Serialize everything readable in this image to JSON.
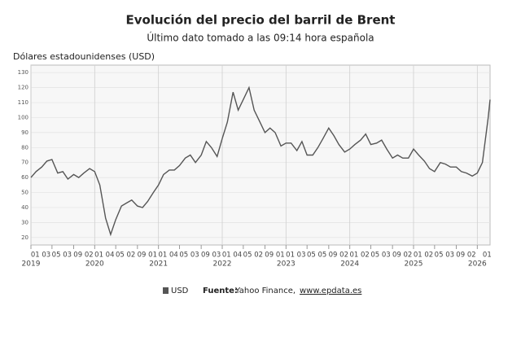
{
  "chart_data": {
    "type": "line",
    "title": "Evolución del precio del barril de Brent",
    "subtitle": "Último dato tomado a las 09:14 hora española",
    "y_label": "Dólares estadounidenses (USD)",
    "source_label": "Fuente:",
    "source_text": "Yahoo Finance,",
    "source_link": "www.epdata.es",
    "series": [
      {
        "name": "USD",
        "color": "#555555",
        "x": [
          2019.0,
          2019.08,
          2019.17,
          2019.25,
          2019.33,
          2019.42,
          2019.5,
          2019.58,
          2019.67,
          2019.75,
          2019.83,
          2019.92,
          2020.0,
          2020.08,
          2020.17,
          2020.25,
          2020.33,
          2020.42,
          2020.5,
          2020.58,
          2020.67,
          2020.75,
          2020.83,
          2020.92,
          2021.0,
          2021.08,
          2021.17,
          2021.25,
          2021.33,
          2021.42,
          2021.5,
          2021.58,
          2021.67,
          2021.75,
          2021.83,
          2021.92,
          2022.0,
          2022.08,
          2022.17,
          2022.25,
          2022.33,
          2022.42,
          2022.5,
          2022.58,
          2022.67,
          2022.75,
          2022.83,
          2022.92,
          2023.0,
          2023.08,
          2023.17,
          2023.25,
          2023.33,
          2023.42,
          2023.5,
          2023.58,
          2023.67,
          2023.75,
          2023.83,
          2023.92,
          2024.0,
          2024.08,
          2024.17,
          2024.25,
          2024.33,
          2024.42,
          2024.5,
          2024.58,
          2024.67,
          2024.75,
          2024.83,
          2024.92,
          2025.0,
          2025.08,
          2025.17,
          2025.25,
          2025.33,
          2025.42,
          2025.5,
          2025.58,
          2025.67,
          2025.75,
          2025.83,
          2025.92,
          2026.0,
          2026.08,
          2026.17,
          2026.2
        ],
        "values": [
          60,
          64,
          67,
          71,
          72,
          63,
          64,
          59,
          62,
          60,
          63,
          66,
          64,
          55,
          33,
          22,
          32,
          41,
          43,
          45,
          41,
          40,
          44,
          50,
          55,
          62,
          65,
          65,
          68,
          73,
          75,
          70,
          75,
          84,
          80,
          74,
          86,
          97,
          117,
          105,
          112,
          120,
          105,
          98,
          90,
          93,
          90,
          81,
          83,
          83,
          78,
          84,
          75,
          75,
          80,
          86,
          93,
          88,
          82,
          77,
          79,
          82,
          85,
          89,
          82,
          83,
          85,
          79,
          73,
          75,
          73,
          73,
          79,
          75,
          71,
          66,
          64,
          70,
          69,
          67,
          67,
          64,
          63,
          61,
          63,
          70,
          100,
          112
        ]
      }
    ],
    "xlim": [
      2019,
      2026.2
    ],
    "ylim": [
      15,
      135
    ],
    "yticks": [
      20,
      30,
      40,
      50,
      60,
      70,
      80,
      90,
      100,
      110,
      120,
      130
    ],
    "xticks": [
      {
        "value": 2019.0,
        "label": "01 03"
      },
      {
        "value": 2019.33,
        "label": "05 03"
      },
      {
        "value": 2019.67,
        "label": "09 02"
      },
      {
        "value": 2020.0,
        "label": "01 04"
      },
      {
        "value": 2020.33,
        "label": "05 02"
      },
      {
        "value": 2020.67,
        "label": "09 01"
      },
      {
        "value": 2021.0,
        "label": "01 04"
      },
      {
        "value": 2021.33,
        "label": "05 03"
      },
      {
        "value": 2021.67,
        "label": "09 03"
      },
      {
        "value": 2022.0,
        "label": "01 04"
      },
      {
        "value": 2022.33,
        "label": "05 02"
      },
      {
        "value": 2022.67,
        "label": "09 01"
      },
      {
        "value": 2023.0,
        "label": "01 03"
      },
      {
        "value": 2023.33,
        "label": "05 05"
      },
      {
        "value": 2023.67,
        "label": "09 02"
      },
      {
        "value": 2024.0,
        "label": "01 02"
      },
      {
        "value": 2024.33,
        "label": "05 03"
      },
      {
        "value": 2024.67,
        "label": "09 02"
      },
      {
        "value": 2025.0,
        "label": "01 02"
      },
      {
        "value": 2025.33,
        "label": "05 03"
      },
      {
        "value": 2025.67,
        "label": "09 02"
      },
      {
        "value": 2026.0,
        "label": "01"
      }
    ],
    "year_ticks": [
      2019,
      2020,
      2021,
      2022,
      2023,
      2024,
      2025,
      2026
    ],
    "grid": true
  }
}
